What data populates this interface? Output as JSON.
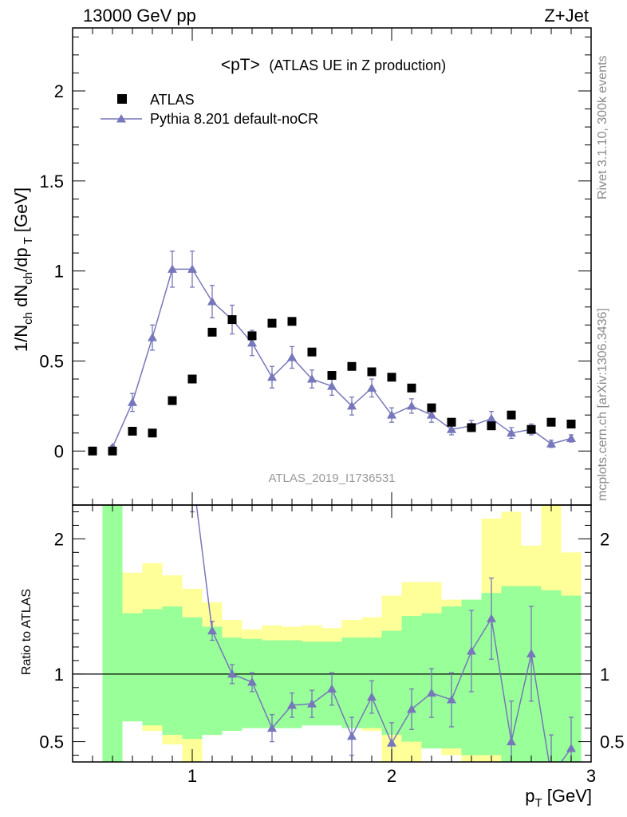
{
  "header": {
    "energy": "13000 GeV pp",
    "process": "Z+Jet"
  },
  "plot_title_main": "<pT>",
  "plot_title_sub": "(ATLAS UE in Z production)",
  "analysis_id": "ATLAS_2019_I1736531",
  "side_labels": {
    "rivet": "Rivet 3.1.10,  300k events",
    "mcplots": "mcplots.cern.ch [arXiv:1306.3436]"
  },
  "colors": {
    "data": "#000000",
    "mc": "#7777bb",
    "band_inner": "#99ff99",
    "band_outer": "#ffff99"
  },
  "chart_data": [
    {
      "type": "scatter",
      "panel": "main",
      "ylabel": "1/N_ch dN_ch/dp_T [GeV]",
      "xlim": [
        0.4,
        3.0
      ],
      "ylim": [
        -0.3,
        2.35
      ],
      "yticks": [
        0,
        0.5,
        1,
        1.5,
        2
      ],
      "ytick_labels": [
        "0",
        "0.5",
        "1",
        "1.5",
        "2"
      ],
      "legend_position": "top-left",
      "series": [
        {
          "name": "ATLAS",
          "marker": "square",
          "x": [
            0.5,
            0.6,
            0.7,
            0.8,
            0.9,
            1.0,
            1.1,
            1.2,
            1.3,
            1.4,
            1.5,
            1.6,
            1.7,
            1.8,
            1.9,
            2.0,
            2.1,
            2.2,
            2.3,
            2.4,
            2.5,
            2.6,
            2.7,
            2.8,
            2.9
          ],
          "y": [
            0.0,
            0.0,
            0.11,
            0.1,
            0.28,
            0.4,
            0.66,
            0.73,
            0.64,
            0.71,
            0.72,
            0.55,
            0.42,
            0.47,
            0.44,
            0.41,
            0.35,
            0.24,
            0.16,
            0.13,
            0.14,
            0.2,
            0.12,
            0.16,
            0.15
          ]
        },
        {
          "name": "Pythia 8.201 default-noCR",
          "marker": "triangle",
          "x": [
            0.6,
            0.7,
            0.8,
            0.9,
            1.0,
            1.1,
            1.2,
            1.3,
            1.4,
            1.5,
            1.6,
            1.7,
            1.8,
            1.9,
            2.0,
            2.1,
            2.2,
            2.3,
            2.4,
            2.5,
            2.6,
            2.7,
            2.8,
            2.9
          ],
          "y": [
            0.02,
            0.27,
            0.63,
            1.01,
            1.01,
            0.83,
            0.73,
            0.6,
            0.41,
            0.52,
            0.4,
            0.36,
            0.25,
            0.35,
            0.2,
            0.25,
            0.2,
            0.12,
            0.14,
            0.18,
            0.1,
            0.12,
            0.04,
            0.07
          ],
          "yerr": [
            0.01,
            0.05,
            0.07,
            0.1,
            0.1,
            0.09,
            0.08,
            0.07,
            0.06,
            0.06,
            0.05,
            0.05,
            0.05,
            0.05,
            0.04,
            0.04,
            0.04,
            0.03,
            0.03,
            0.04,
            0.03,
            0.03,
            0.02,
            0.02
          ]
        }
      ]
    },
    {
      "type": "line",
      "panel": "ratio",
      "ylabel": "Ratio to ATLAS",
      "xlabel": "p_T [GeV]",
      "xlim": [
        0.4,
        3.0
      ],
      "ylim": [
        0.35,
        2.25
      ],
      "xticks": [
        1,
        2,
        3
      ],
      "xtick_labels": [
        "1",
        "2",
        "3"
      ],
      "yticks": [
        0.5,
        1,
        2
      ],
      "ytick_labels": [
        "0.5",
        "1",
        "2"
      ],
      "bands": {
        "edges": [
          0.55,
          0.65,
          0.75,
          0.85,
          0.95,
          1.05,
          1.15,
          1.25,
          1.35,
          1.45,
          1.55,
          1.65,
          1.75,
          1.85,
          1.95,
          2.05,
          2.15,
          2.25,
          2.35,
          2.45,
          2.55,
          2.65,
          2.75,
          2.85,
          2.95
        ],
        "inner_low": [
          0.2,
          0.65,
          0.62,
          0.55,
          0.52,
          0.55,
          0.58,
          0.6,
          0.6,
          0.6,
          0.62,
          0.62,
          0.6,
          0.6,
          0.55,
          0.5,
          0.45,
          0.45,
          0.4,
          0.4,
          0.35,
          0.3,
          0.3,
          0.3
        ],
        "inner_high": [
          3.0,
          1.45,
          1.48,
          1.5,
          1.42,
          1.35,
          1.27,
          1.26,
          1.25,
          1.25,
          1.24,
          1.24,
          1.27,
          1.27,
          1.32,
          1.43,
          1.45,
          1.5,
          1.55,
          1.6,
          1.65,
          1.65,
          1.62,
          1.58
        ],
        "outer_low": [
          0.2,
          0.65,
          0.58,
          0.48,
          0.3,
          0.55,
          0.75,
          0.8,
          0.65,
          0.7,
          0.68,
          0.65,
          0.62,
          0.58,
          0.3,
          0.3,
          0.45,
          0.4,
          0.3,
          0.3,
          0.25,
          0.2,
          0.2,
          0.2
        ],
        "outer_high": [
          3.0,
          1.75,
          1.82,
          1.73,
          1.63,
          1.53,
          1.4,
          1.33,
          1.36,
          1.35,
          1.36,
          1.34,
          1.4,
          1.42,
          1.58,
          1.68,
          1.68,
          1.55,
          1.55,
          2.15,
          2.2,
          1.95,
          2.25,
          1.9
        ]
      },
      "series": [
        {
          "name": "Pythia 8.201 default-noCR",
          "marker": "triangle",
          "x": [
            1.0,
            1.1,
            1.2,
            1.3,
            1.4,
            1.5,
            1.6,
            1.7,
            1.8,
            1.9,
            2.0,
            2.1,
            2.2,
            2.3,
            2.4,
            2.5,
            2.6,
            2.7,
            2.8,
            2.9
          ],
          "y": [
            2.5,
            1.32,
            1.0,
            0.94,
            0.6,
            0.77,
            0.78,
            0.89,
            0.54,
            0.83,
            0.49,
            0.74,
            0.86,
            0.81,
            1.17,
            1.41,
            0.5,
            1.15,
            0.25,
            0.45
          ],
          "yerr": [
            0.3,
            0.07,
            0.07,
            0.07,
            0.1,
            0.09,
            0.1,
            0.12,
            0.14,
            0.12,
            0.15,
            0.15,
            0.18,
            0.2,
            0.3,
            0.3,
            0.3,
            0.35,
            0.3,
            0.23
          ]
        }
      ]
    }
  ]
}
